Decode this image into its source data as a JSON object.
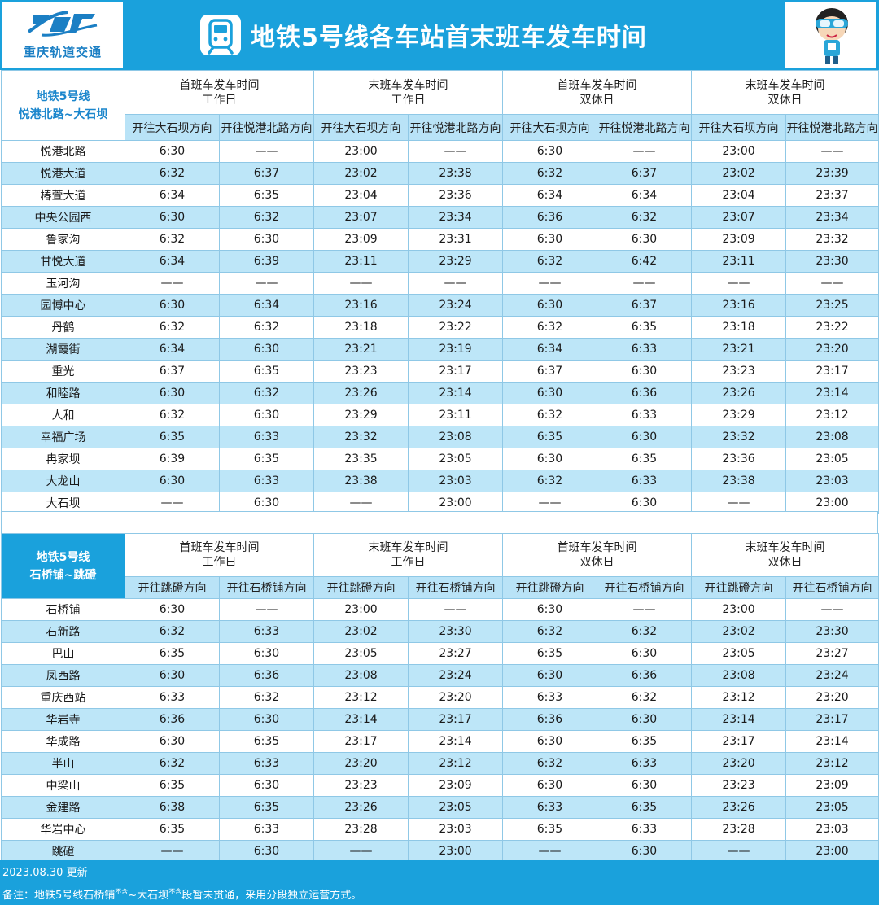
{
  "header": {
    "logo_text": "重庆轨道交通",
    "title": "地铁5号线各车站首末班车发车时间"
  },
  "colors": {
    "accent": "#1aa1dc",
    "row_alt": "#bde6f8",
    "line_label": "#1b86cc"
  },
  "icons": {
    "logo": "cqmetro-logo-icon",
    "train": "train-icon",
    "mascot": "mascot-icon"
  },
  "section1": {
    "line_name": "地铁5号线",
    "line_range": "悦港北路~大石坝",
    "groups": [
      {
        "title": "首班车发车时间",
        "day": "工作日"
      },
      {
        "title": "末班车发车时间",
        "day": "工作日"
      },
      {
        "title": "首班车发车时间",
        "day": "双休日"
      },
      {
        "title": "末班车发车时间",
        "day": "双休日"
      }
    ],
    "directions": [
      "开往大石坝方向",
      "开往悦港北路方向",
      "开往大石坝方向",
      "开往悦港北路方向",
      "开往大石坝方向",
      "开往悦港北路方向",
      "开往大石坝方向",
      "开往悦港北路方向"
    ],
    "rows": [
      {
        "station": "悦港北路",
        "times": [
          "6:30",
          "——",
          "23:00",
          "——",
          "6:30",
          "——",
          "23:00",
          "——"
        ]
      },
      {
        "station": "悦港大道",
        "times": [
          "6:32",
          "6:37",
          "23:02",
          "23:38",
          "6:32",
          "6:37",
          "23:02",
          "23:39"
        ]
      },
      {
        "station": "椿萱大道",
        "times": [
          "6:34",
          "6:35",
          "23:04",
          "23:36",
          "6:34",
          "6:34",
          "23:04",
          "23:37"
        ]
      },
      {
        "station": "中央公园西",
        "times": [
          "6:30",
          "6:32",
          "23:07",
          "23:34",
          "6:36",
          "6:32",
          "23:07",
          "23:34"
        ]
      },
      {
        "station": "鲁家沟",
        "times": [
          "6:32",
          "6:30",
          "23:09",
          "23:31",
          "6:30",
          "6:30",
          "23:09",
          "23:32"
        ]
      },
      {
        "station": "甘悦大道",
        "times": [
          "6:34",
          "6:39",
          "23:11",
          "23:29",
          "6:32",
          "6:42",
          "23:11",
          "23:30"
        ]
      },
      {
        "station": "玉河沟",
        "times": [
          "——",
          "——",
          "——",
          "——",
          "——",
          "——",
          "——",
          "——"
        ]
      },
      {
        "station": "园博中心",
        "times": [
          "6:30",
          "6:34",
          "23:16",
          "23:24",
          "6:30",
          "6:37",
          "23:16",
          "23:25"
        ]
      },
      {
        "station": "丹鹤",
        "times": [
          "6:32",
          "6:32",
          "23:18",
          "23:22",
          "6:32",
          "6:35",
          "23:18",
          "23:22"
        ]
      },
      {
        "station": "湖霞街",
        "times": [
          "6:34",
          "6:30",
          "23:21",
          "23:19",
          "6:34",
          "6:33",
          "23:21",
          "23:20"
        ]
      },
      {
        "station": "重光",
        "times": [
          "6:37",
          "6:35",
          "23:23",
          "23:17",
          "6:37",
          "6:30",
          "23:23",
          "23:17"
        ]
      },
      {
        "station": "和睦路",
        "times": [
          "6:30",
          "6:32",
          "23:26",
          "23:14",
          "6:30",
          "6:36",
          "23:26",
          "23:14"
        ]
      },
      {
        "station": "人和",
        "times": [
          "6:32",
          "6:30",
          "23:29",
          "23:11",
          "6:32",
          "6:33",
          "23:29",
          "23:12"
        ]
      },
      {
        "station": "幸福广场",
        "times": [
          "6:35",
          "6:33",
          "23:32",
          "23:08",
          "6:35",
          "6:30",
          "23:32",
          "23:08"
        ]
      },
      {
        "station": "冉家坝",
        "times": [
          "6:39",
          "6:35",
          "23:35",
          "23:05",
          "6:30",
          "6:35",
          "23:36",
          "23:05"
        ]
      },
      {
        "station": "大龙山",
        "times": [
          "6:30",
          "6:33",
          "23:38",
          "23:03",
          "6:32",
          "6:33",
          "23:38",
          "23:03"
        ]
      },
      {
        "station": "大石坝",
        "times": [
          "——",
          "6:30",
          "——",
          "23:00",
          "——",
          "6:30",
          "——",
          "23:00"
        ]
      }
    ]
  },
  "section2": {
    "line_name": "地铁5号线",
    "line_range": "石桥铺~跳磴",
    "groups": [
      {
        "title": "首班车发车时间",
        "day": "工作日"
      },
      {
        "title": "末班车发车时间",
        "day": "工作日"
      },
      {
        "title": "首班车发车时间",
        "day": "双休日"
      },
      {
        "title": "末班车发车时间",
        "day": "双休日"
      }
    ],
    "directions": [
      "开往跳磴方向",
      "开往石桥铺方向",
      "开往跳磴方向",
      "开往石桥铺方向",
      "开往跳磴方向",
      "开往石桥铺方向",
      "开往跳磴方向",
      "开往石桥铺方向"
    ],
    "rows": [
      {
        "station": "石桥铺",
        "times": [
          "6:30",
          "——",
          "23:00",
          "——",
          "6:30",
          "——",
          "23:00",
          "——"
        ]
      },
      {
        "station": "石新路",
        "times": [
          "6:32",
          "6:33",
          "23:02",
          "23:30",
          "6:32",
          "6:32",
          "23:02",
          "23:30"
        ]
      },
      {
        "station": "巴山",
        "times": [
          "6:35",
          "6:30",
          "23:05",
          "23:27",
          "6:35",
          "6:30",
          "23:05",
          "23:27"
        ]
      },
      {
        "station": "凤西路",
        "times": [
          "6:30",
          "6:36",
          "23:08",
          "23:24",
          "6:30",
          "6:36",
          "23:08",
          "23:24"
        ]
      },
      {
        "station": "重庆西站",
        "times": [
          "6:33",
          "6:32",
          "23:12",
          "23:20",
          "6:33",
          "6:32",
          "23:12",
          "23:20"
        ]
      },
      {
        "station": "华岩寺",
        "times": [
          "6:36",
          "6:30",
          "23:14",
          "23:17",
          "6:36",
          "6:30",
          "23:14",
          "23:17"
        ]
      },
      {
        "station": "华成路",
        "times": [
          "6:30",
          "6:35",
          "23:17",
          "23:14",
          "6:30",
          "6:35",
          "23:17",
          "23:14"
        ]
      },
      {
        "station": "半山",
        "times": [
          "6:32",
          "6:33",
          "23:20",
          "23:12",
          "6:32",
          "6:33",
          "23:20",
          "23:12"
        ]
      },
      {
        "station": "中梁山",
        "times": [
          "6:35",
          "6:30",
          "23:23",
          "23:09",
          "6:30",
          "6:30",
          "23:23",
          "23:09"
        ]
      },
      {
        "station": "金建路",
        "times": [
          "6:38",
          "6:35",
          "23:26",
          "23:05",
          "6:33",
          "6:35",
          "23:26",
          "23:05"
        ]
      },
      {
        "station": "华岩中心",
        "times": [
          "6:35",
          "6:33",
          "23:28",
          "23:03",
          "6:35",
          "6:33",
          "23:28",
          "23:03"
        ]
      },
      {
        "station": "跳磴",
        "times": [
          "——",
          "6:30",
          "——",
          "23:00",
          "——",
          "6:30",
          "——",
          "23:00"
        ]
      }
    ]
  },
  "footer": {
    "updated": "2023.08.30 更新",
    "note_prefix": "备注：地铁5号线石桥铺",
    "note_sup1": "不含",
    "note_mid": "~大石坝",
    "note_sup2": "不含",
    "note_suffix": "段暂未贯通，采用分段独立运营方式。"
  }
}
